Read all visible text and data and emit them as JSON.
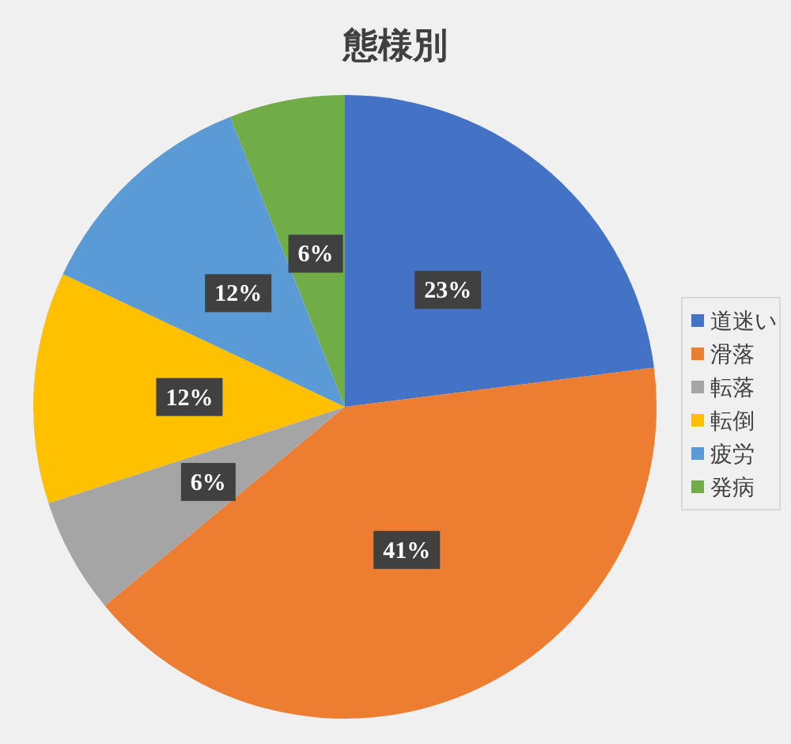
{
  "chart_data": {
    "type": "pie",
    "title": "態様別",
    "categories": [
      "道迷い",
      "滑落",
      "転落",
      "転倒",
      "疲労",
      "発病"
    ],
    "values": [
      23,
      41,
      6,
      12,
      12,
      6
    ],
    "colors": [
      "#4472c4",
      "#ed7d31",
      "#a5a5a5",
      "#ffc000",
      "#5b9bd5",
      "#70ad47"
    ],
    "value_labels": [
      "23%",
      "41%",
      "6%",
      "12%",
      "12%",
      "6%"
    ],
    "legend": "right"
  }
}
